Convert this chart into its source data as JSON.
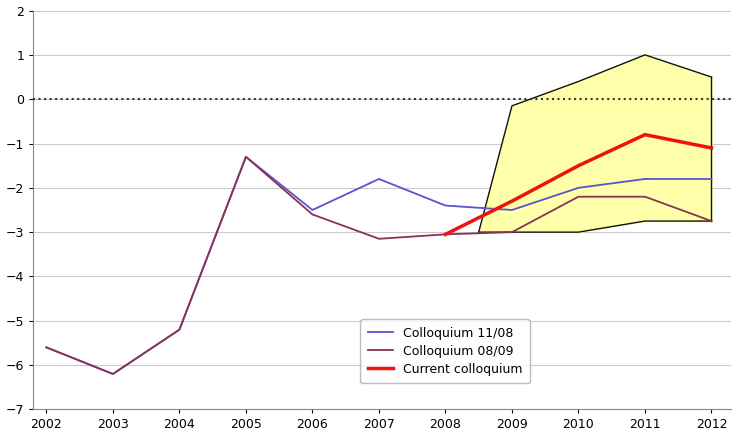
{
  "blue_x": [
    2002,
    2003,
    2004,
    2005,
    2006,
    2007,
    2008,
    2009,
    2010,
    2011,
    2012
  ],
  "blue_y": [
    -5.6,
    -6.2,
    -5.2,
    -1.3,
    -2.5,
    -1.8,
    -2.4,
    -2.5,
    -2.0,
    -1.8,
    -1.8
  ],
  "purple_x": [
    2002,
    2003,
    2004,
    2005,
    2006,
    2007,
    2008,
    2009,
    2010,
    2011,
    2012
  ],
  "purple_y": [
    -5.6,
    -6.2,
    -5.2,
    -1.3,
    -2.6,
    -3.15,
    -3.05,
    -3.0,
    -2.2,
    -2.2,
    -2.75
  ],
  "red_x": [
    2008,
    2009,
    2010,
    2011,
    2012
  ],
  "red_y": [
    -3.05,
    -2.3,
    -1.5,
    -0.8,
    -1.1
  ],
  "band_x": [
    2008.5,
    2009,
    2010,
    2011,
    2012
  ],
  "band_upper": [
    -3.0,
    -0.15,
    0.4,
    1.0,
    0.5
  ],
  "band_lower": [
    -3.0,
    -3.0,
    -3.0,
    -2.75,
    -2.75
  ],
  "blue_color": "#5555cc",
  "purple_color": "#883355",
  "red_color": "#ee1111",
  "band_fill_color": "#ffffaa",
  "band_edge_color": "#111111",
  "zero_line_color": "#333333",
  "grid_color": "#cccccc",
  "bg_color": "#ffffff",
  "xlim": [
    2002,
    2012
  ],
  "ylim": [
    -7,
    2
  ],
  "yticks": [
    -7,
    -6,
    -5,
    -4,
    -3,
    -2,
    -1,
    0,
    1,
    2
  ],
  "xticks": [
    2002,
    2003,
    2004,
    2005,
    2006,
    2007,
    2008,
    2009,
    2010,
    2011,
    2012
  ],
  "legend_labels": [
    "Colloquium 11/08",
    "Colloquium 08/09",
    "Current colloquium"
  ],
  "legend_colors": [
    "#5555cc",
    "#883355",
    "#ee1111"
  ]
}
